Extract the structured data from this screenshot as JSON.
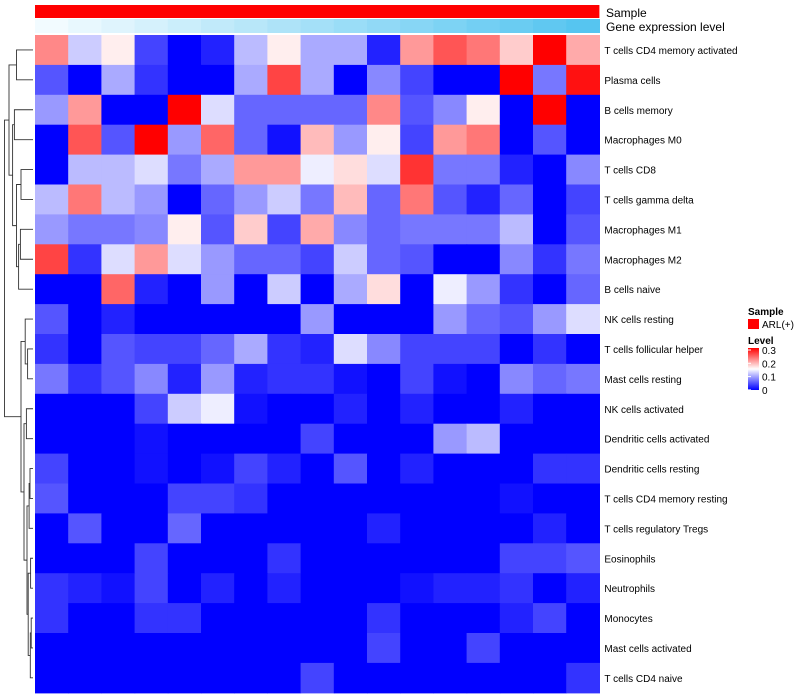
{
  "chart_data": {
    "type": "heatmap",
    "title": "",
    "annotation_tracks": [
      {
        "name": "Sample",
        "values": [
          "ARL(+)"
        ],
        "colors": [
          "#ff0000"
        ]
      },
      {
        "name": "Gene expression level",
        "gradient": [
          "#f2fbff",
          "#56c5f0"
        ]
      }
    ],
    "rows": [
      "T cells CD4 memory activated",
      "Plasma cells",
      "B cells memory",
      "Macrophages M0",
      "T cells CD8",
      "T cells gamma delta",
      "Macrophages M1",
      "Macrophages M2",
      "B cells naive",
      "NK cells resting",
      "T cells follicular helper",
      "Mast cells resting",
      "NK cells activated",
      "Dendritic cells activated",
      "Dendritic cells resting",
      "T cells CD4 memory resting",
      "T cells regulatory  Tregs",
      "Eosinophils",
      "Neutrophils",
      "Monocytes",
      "Mast cells activated",
      "T cells CD4 naive"
    ],
    "n_columns": 17,
    "values": [
      [
        0.22,
        0.12,
        0.16,
        0.04,
        0.0,
        0.02,
        0.11,
        0.16,
        0.1,
        0.1,
        0.02,
        0.21,
        0.25,
        0.23,
        0.18,
        0.3,
        0.2
      ],
      [
        0.05,
        0.0,
        0.1,
        0.03,
        0.0,
        0.0,
        0.1,
        0.26,
        0.1,
        0.0,
        0.08,
        0.04,
        0.0,
        0.0,
        0.3,
        0.07,
        0.29
      ],
      [
        0.09,
        0.21,
        0.0,
        0.0,
        0.3,
        0.13,
        0.06,
        0.06,
        0.06,
        0.06,
        0.22,
        0.05,
        0.08,
        0.16,
        0.0,
        0.3,
        0.0
      ],
      [
        0.0,
        0.25,
        0.05,
        0.3,
        0.09,
        0.24,
        0.06,
        0.01,
        0.19,
        0.09,
        0.16,
        0.04,
        0.21,
        0.23,
        0.0,
        0.05,
        0.0
      ],
      [
        0.0,
        0.11,
        0.11,
        0.13,
        0.07,
        0.1,
        0.21,
        0.21,
        0.14,
        0.17,
        0.13,
        0.27,
        0.07,
        0.07,
        0.02,
        0.0,
        0.08
      ],
      [
        0.11,
        0.23,
        0.11,
        0.09,
        0.0,
        0.06,
        0.09,
        0.12,
        0.07,
        0.19,
        0.06,
        0.23,
        0.05,
        0.02,
        0.06,
        0.0,
        0.04
      ],
      [
        0.09,
        0.07,
        0.07,
        0.08,
        0.16,
        0.05,
        0.18,
        0.04,
        0.2,
        0.08,
        0.06,
        0.07,
        0.07,
        0.07,
        0.11,
        0.0,
        0.05
      ],
      [
        0.26,
        0.03,
        0.13,
        0.21,
        0.13,
        0.09,
        0.06,
        0.06,
        0.04,
        0.12,
        0.06,
        0.05,
        0.0,
        0.0,
        0.08,
        0.03,
        0.07
      ],
      [
        0.0,
        0.0,
        0.24,
        0.02,
        0.0,
        0.09,
        0.0,
        0.12,
        0.0,
        0.1,
        0.17,
        0.0,
        0.14,
        0.09,
        0.03,
        0.0,
        0.06
      ],
      [
        0.05,
        0.0,
        0.02,
        0.0,
        0.0,
        0.0,
        0.0,
        0.0,
        0.09,
        0.0,
        0.0,
        0.0,
        0.09,
        0.06,
        0.05,
        0.09,
        0.13
      ],
      [
        0.03,
        0.0,
        0.05,
        0.04,
        0.04,
        0.06,
        0.1,
        0.03,
        0.02,
        0.13,
        0.08,
        0.04,
        0.04,
        0.04,
        0.0,
        0.03,
        0.0
      ],
      [
        0.07,
        0.03,
        0.05,
        0.08,
        0.02,
        0.09,
        0.02,
        0.03,
        0.03,
        0.01,
        0.0,
        0.04,
        0.01,
        0.0,
        0.08,
        0.06,
        0.07
      ],
      [
        0.0,
        0.0,
        0.0,
        0.04,
        0.12,
        0.14,
        0.01,
        0.0,
        0.0,
        0.02,
        0.0,
        0.02,
        0.0,
        0.0,
        0.02,
        0.0,
        0.0
      ],
      [
        0.0,
        0.0,
        0.0,
        0.01,
        0.0,
        0.0,
        0.0,
        0.0,
        0.04,
        0.0,
        0.0,
        0.0,
        0.09,
        0.11,
        0.0,
        0.0,
        0.0
      ],
      [
        0.04,
        0.0,
        0.0,
        0.01,
        0.0,
        0.01,
        0.04,
        0.02,
        0.0,
        0.05,
        0.0,
        0.02,
        0.0,
        0.0,
        0.0,
        0.03,
        0.03
      ],
      [
        0.05,
        0.0,
        0.0,
        0.0,
        0.04,
        0.04,
        0.03,
        0.0,
        0.0,
        0.0,
        0.0,
        0.0,
        0.0,
        0.0,
        0.01,
        0.0,
        0.0
      ],
      [
        0.0,
        0.05,
        0.0,
        0.0,
        0.06,
        0.0,
        0.0,
        0.0,
        0.0,
        0.0,
        0.02,
        0.0,
        0.0,
        0.0,
        0.0,
        0.02,
        0.0
      ],
      [
        0.0,
        0.0,
        0.0,
        0.04,
        0.0,
        0.0,
        0.0,
        0.03,
        0.0,
        0.0,
        0.0,
        0.0,
        0.0,
        0.0,
        0.04,
        0.04,
        0.05
      ],
      [
        0.03,
        0.02,
        0.01,
        0.04,
        0.0,
        0.02,
        0.0,
        0.02,
        0.0,
        0.0,
        0.0,
        0.01,
        0.02,
        0.02,
        0.03,
        0.0,
        0.02
      ],
      [
        0.03,
        0.0,
        0.0,
        0.03,
        0.03,
        0.0,
        0.0,
        0.0,
        0.0,
        0.0,
        0.03,
        0.0,
        0.0,
        0.0,
        0.02,
        0.04,
        0.0
      ],
      [
        0.0,
        0.0,
        0.0,
        0.0,
        0.0,
        0.0,
        0.0,
        0.0,
        0.0,
        0.0,
        0.04,
        0.0,
        0.0,
        0.04,
        0.0,
        0.0,
        0.0
      ],
      [
        0.0,
        0.0,
        0.0,
        0.0,
        0.0,
        0.0,
        0.0,
        0.0,
        0.04,
        0.0,
        0.0,
        0.0,
        0.0,
        0.0,
        0.0,
        0.0,
        0.03
      ]
    ],
    "color_scale": {
      "min": 0,
      "mid": 0.15,
      "max": 0.3,
      "low": "#0000ff",
      "mid_color": "#ffffff",
      "high": "#ff0000"
    },
    "legend": {
      "sample_title": "Sample",
      "sample_label": "ARL(+)",
      "level_title": "Level",
      "level_ticks": [
        "0.3",
        "0.2",
        "0.1",
        "0"
      ],
      "position": "right"
    },
    "row_dendrogram": true
  }
}
